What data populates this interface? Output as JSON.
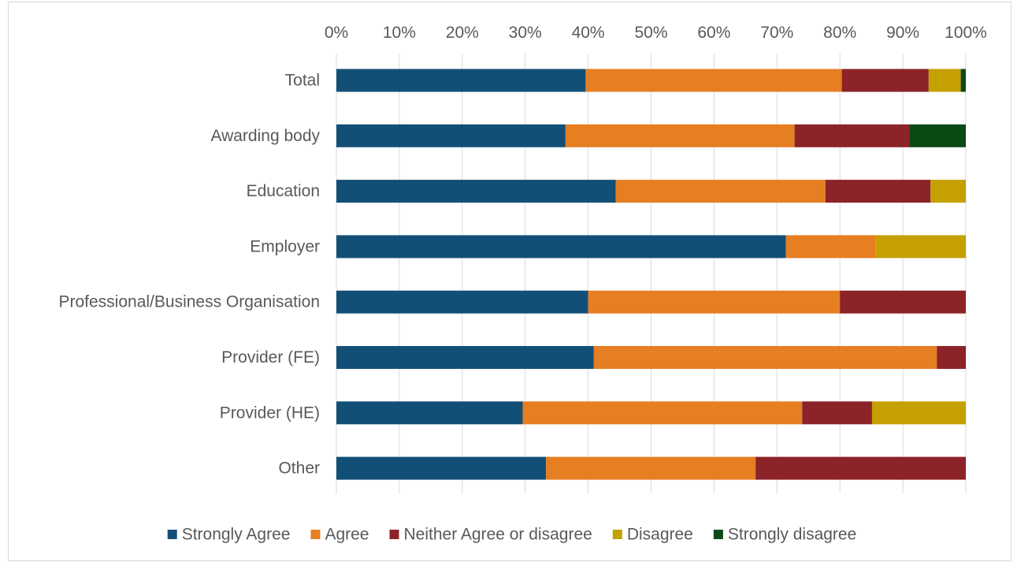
{
  "chart_data": {
    "type": "bar",
    "orientation": "horizontal",
    "stacked": "percent",
    "title": "",
    "xlabel": "",
    "ylabel": "",
    "xlim": [
      0,
      100
    ],
    "x_ticks": [
      "0%",
      "10%",
      "20%",
      "30%",
      "40%",
      "50%",
      "60%",
      "70%",
      "80%",
      "90%",
      "100%"
    ],
    "grid": true,
    "legend_position": "bottom",
    "categories": [
      "Total",
      "Awarding body",
      "Education",
      "Employer",
      "Professional/Business Organisation",
      "Provider (FE)",
      "Provider (HE)",
      "Other"
    ],
    "series": [
      {
        "name": "Strongly Agree",
        "color": "#124F77",
        "values": [
          39.6,
          36.4,
          44.4,
          71.4,
          40.0,
          40.9,
          29.6,
          33.3
        ]
      },
      {
        "name": "Agree",
        "color": "#E67E22",
        "values": [
          40.7,
          36.4,
          33.3,
          14.3,
          40.0,
          54.5,
          44.4,
          33.3
        ]
      },
      {
        "name": "Neither Agree or disagree",
        "color": "#8B2328",
        "values": [
          13.8,
          18.2,
          16.7,
          0,
          20.0,
          4.6,
          11.1,
          33.4
        ]
      },
      {
        "name": "Disagree",
        "color": "#C4A000",
        "values": [
          5.1,
          0,
          5.6,
          14.3,
          0,
          0,
          14.9,
          0
        ]
      },
      {
        "name": "Strongly disagree",
        "color": "#0B4A15",
        "values": [
          0.8,
          9.0,
          0,
          0,
          0,
          0,
          0,
          0
        ]
      }
    ]
  }
}
